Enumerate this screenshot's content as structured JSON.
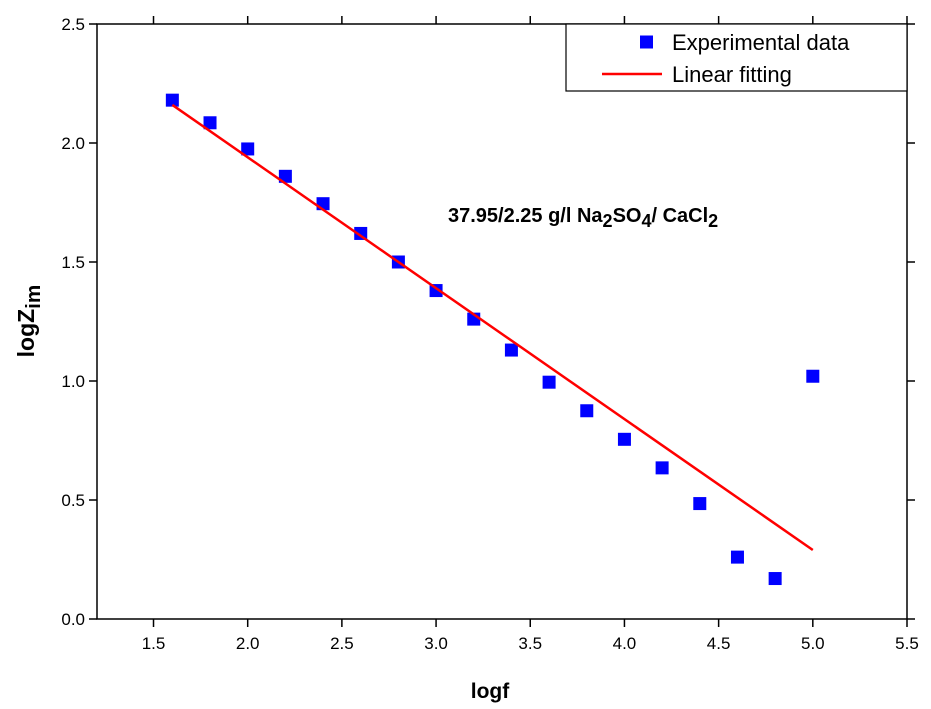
{
  "chart_data": {
    "type": "scatter",
    "annotation": "37.95/2.25 g/l Na2SO4/ CaCl2",
    "x_label": "logf",
    "y_label": "logZim",
    "xlim": [
      1.2,
      5.5
    ],
    "ylim": [
      0,
      2.5
    ],
    "xticks": [
      1.5,
      {
        "value": 2,
        "label": "2.0"
      },
      2.5,
      {
        "value": 3,
        "label": "3.0"
      },
      3.5,
      {
        "value": 4,
        "label": "4.0"
      },
      4.5,
      {
        "value": 5,
        "label": "5.0"
      },
      5.5
    ],
    "yticks": [
      {
        "value": 0,
        "label": "0.0"
      },
      0.5,
      {
        "value": 1,
        "label": "1.0"
      },
      1.5,
      {
        "value": 2,
        "label": "2.0"
      },
      2.5
    ],
    "legend": "upper right",
    "series": [
      {
        "name": "Experimental data",
        "type": "scatter",
        "color": "#0000ff",
        "x": [
          1.6,
          1.8,
          2.0,
          2.2,
          2.4,
          2.6,
          2.8,
          3.0,
          3.2,
          3.4,
          3.6,
          3.8,
          4.0,
          4.2,
          4.4,
          4.6,
          4.8,
          5.0
        ],
        "values": [
          2.18,
          2.085,
          1.975,
          1.86,
          1.745,
          1.62,
          1.5,
          1.38,
          1.26,
          1.13,
          0.995,
          0.875,
          0.755,
          0.635,
          0.485,
          0.26,
          0.17,
          1.02
        ]
      },
      {
        "name": "Linear fitting",
        "type": "line",
        "color": "#ff0000",
        "x": [
          1.6,
          5.0
        ],
        "values": [
          2.16,
          0.29
        ]
      }
    ]
  }
}
